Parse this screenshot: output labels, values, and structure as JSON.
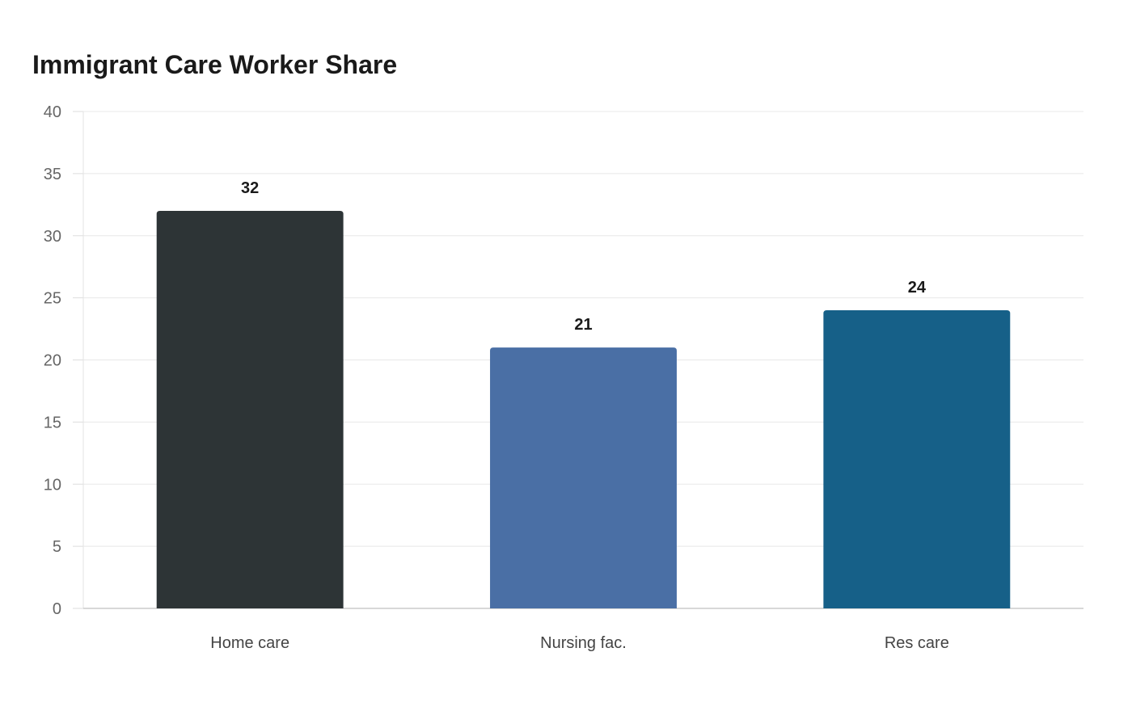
{
  "chart_data": {
    "type": "bar",
    "title": "Immigrant Care Worker Share",
    "xlabel": "",
    "ylabel": "",
    "categories": [
      "Home care",
      "Nursing fac.",
      "Res care"
    ],
    "values": [
      32,
      21,
      24
    ],
    "colors": [
      "#2d3436",
      "#4a6fa5",
      "#166088"
    ],
    "ylim": [
      0,
      40
    ],
    "yticks": [
      0,
      5,
      10,
      15,
      20,
      25,
      30,
      35,
      40
    ],
    "grid": true,
    "legend": "none",
    "data_labels": [
      "32",
      "21",
      "24"
    ]
  }
}
